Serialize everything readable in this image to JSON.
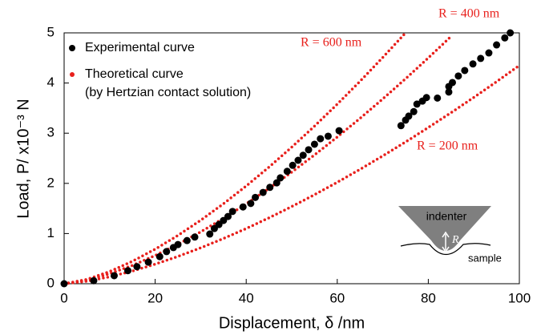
{
  "chart_data": {
    "type": "scatter",
    "x_label": "Displacement, δ /nm",
    "y_label": "Load, P/ x10⁻³ N",
    "xlim": [
      0,
      100
    ],
    "xticks": [
      0,
      20,
      40,
      60,
      80,
      100
    ],
    "ylim": [
      0,
      5
    ],
    "yticks": [
      0,
      1,
      2,
      3,
      4,
      5
    ],
    "grid": false,
    "series": [
      {
        "name": "Experimental curve",
        "color": "#000000",
        "x": [
          0,
          6.5,
          11,
          14,
          16,
          18.5,
          21,
          22.5,
          24,
          25,
          27,
          28.7,
          32,
          33,
          34,
          35,
          36,
          37,
          39.3,
          41,
          42,
          43.7,
          45.2,
          46.7,
          47.5,
          49,
          50.2,
          51.4,
          52.5,
          53.7,
          55,
          56.3,
          58,
          60.4,
          74,
          75,
          75.7,
          76.8,
          77.5,
          78.7,
          79.6,
          82,
          84.5,
          84.5,
          85.3,
          86.6,
          88,
          89.8,
          91.5,
          93.3,
          95,
          96.8,
          98
        ],
        "values": [
          0,
          0.06,
          0.16,
          0.26,
          0.34,
          0.43,
          0.54,
          0.64,
          0.72,
          0.78,
          0.86,
          0.93,
          0.99,
          1.1,
          1.18,
          1.26,
          1.34,
          1.44,
          1.53,
          1.6,
          1.72,
          1.82,
          1.92,
          2.01,
          2.11,
          2.24,
          2.36,
          2.46,
          2.56,
          2.67,
          2.78,
          2.89,
          2.94,
          3.05,
          3.15,
          3.26,
          3.34,
          3.43,
          3.58,
          3.64,
          3.71,
          3.7,
          3.82,
          3.93,
          4.01,
          4.14,
          4.25,
          4.38,
          4.49,
          4.6,
          4.76,
          4.9,
          5.0
        ]
      }
    ],
    "theoretical_color": "#e8201c",
    "theoretical_legend": [
      "Theoretical curve",
      "(by Hertzian contact solution)"
    ],
    "curves": [
      {
        "label": "R = 600 nm",
        "x": [
          0,
          5,
          10,
          15,
          20,
          25,
          30,
          35,
          40,
          45,
          50,
          55,
          60,
          65,
          70,
          75
        ],
        "values": [
          0,
          0.086,
          0.243,
          0.447,
          0.689,
          0.963,
          1.265,
          1.594,
          1.948,
          2.324,
          2.722,
          3.141,
          3.579,
          4.035,
          4.51,
          5.0
        ]
      },
      {
        "label": "R = 400 nm",
        "x": [
          0,
          5,
          10,
          15,
          20,
          25,
          30,
          35,
          40,
          45,
          50,
          55,
          60,
          65,
          70,
          75,
          80,
          85
        ],
        "values": [
          0,
          0.07,
          0.199,
          0.365,
          0.563,
          0.786,
          1.033,
          1.303,
          1.591,
          1.899,
          2.224,
          2.566,
          2.924,
          3.296,
          3.684,
          4.085,
          4.501,
          4.93
        ]
      },
      {
        "label": "R = 200 nm",
        "x": [
          0,
          5,
          10,
          15,
          20,
          25,
          30,
          35,
          40,
          45,
          50,
          55,
          60,
          65,
          70,
          75,
          80,
          85,
          90,
          95,
          100
        ],
        "values": [
          0,
          0.049,
          0.138,
          0.253,
          0.389,
          0.544,
          0.715,
          0.901,
          1.1,
          1.313,
          1.538,
          1.774,
          2.022,
          2.28,
          2.548,
          2.825,
          3.113,
          3.409,
          3.714,
          4.028,
          4.35
        ]
      }
    ],
    "inset": {
      "indenter": "indenter",
      "radius": "R",
      "sample": "sample"
    }
  }
}
